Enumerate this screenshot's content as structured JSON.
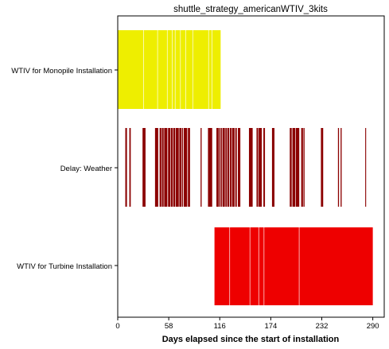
{
  "chart_data": {
    "type": "bar",
    "subtype": "broken-barh",
    "title": "shuttle_strategy_americanWTIV_3kits",
    "xlabel": "Days elapsed since the start of installation",
    "ylabel": "",
    "xlim": [
      0,
      303
    ],
    "xticks": [
      0,
      58,
      116,
      174,
      232,
      290
    ],
    "xtick_labels": [
      "0",
      "58",
      "116",
      "174",
      "232",
      "290"
    ],
    "grid": false,
    "categories": [
      "WTIV for Monopile Installation",
      "Delay: Weather",
      "WTIV for Turbine Installation"
    ],
    "series": [
      {
        "category": "WTIV for Monopile Installation",
        "color": "#eeee00",
        "segments": [
          [
            0,
            29
          ],
          [
            29.6,
            45
          ],
          [
            45.6,
            56
          ],
          [
            56.6,
            61.5
          ],
          [
            62.1,
            65
          ],
          [
            65.6,
            71
          ],
          [
            71.6,
            77
          ],
          [
            77.6,
            85
          ],
          [
            85.6,
            103
          ],
          [
            103.6,
            107
          ],
          [
            107.6,
            117
          ]
        ]
      },
      {
        "category": "Delay: Weather",
        "color": "#8b0000",
        "segments": [
          [
            8.6,
            10.5
          ],
          [
            13.2,
            14.8
          ],
          [
            28.2,
            31.6
          ],
          [
            42.4,
            46
          ],
          [
            47.6,
            49.6
          ],
          [
            50.2,
            52.2
          ],
          [
            52.8,
            56.4
          ],
          [
            57.2,
            60
          ],
          [
            60.6,
            62.6
          ],
          [
            63.2,
            65.2
          ],
          [
            65.8,
            69.4
          ],
          [
            70,
            72.4
          ],
          [
            73,
            74.2
          ],
          [
            75,
            79
          ],
          [
            79.8,
            82.2
          ],
          [
            94.2,
            95.4
          ],
          [
            102.6,
            107.4
          ],
          [
            112.2,
            114.8
          ],
          [
            115.4,
            116.8
          ],
          [
            117.4,
            118.6
          ],
          [
            119.2,
            121.8
          ],
          [
            122.4,
            124.2
          ],
          [
            124.8,
            126.8
          ],
          [
            127.6,
            129.4
          ],
          [
            130,
            132.8
          ],
          [
            133.6,
            135.4
          ],
          [
            136.6,
            139.4
          ],
          [
            149.2,
            153.4
          ],
          [
            157.8,
            159.6
          ],
          [
            160.2,
            163.8
          ],
          [
            165.6,
            167.4
          ],
          [
            175.4,
            178.2
          ],
          [
            195.6,
            197.8
          ],
          [
            198.6,
            201.8
          ],
          [
            202.4,
            206.4
          ],
          [
            208.6,
            210.6
          ],
          [
            211.2,
            212.4
          ],
          [
            231,
            233.6
          ],
          [
            250.4,
            251.6
          ],
          [
            253.4,
            254.6
          ],
          [
            281.4,
            282.4
          ]
        ]
      },
      {
        "category": "WTIV for Turbine Installation",
        "color": "#ee0000",
        "segments": [
          [
            110,
            127
          ],
          [
            127.6,
            150
          ],
          [
            150.6,
            160
          ],
          [
            160.6,
            166
          ],
          [
            166.6,
            206
          ],
          [
            206.6,
            290
          ]
        ]
      }
    ]
  }
}
